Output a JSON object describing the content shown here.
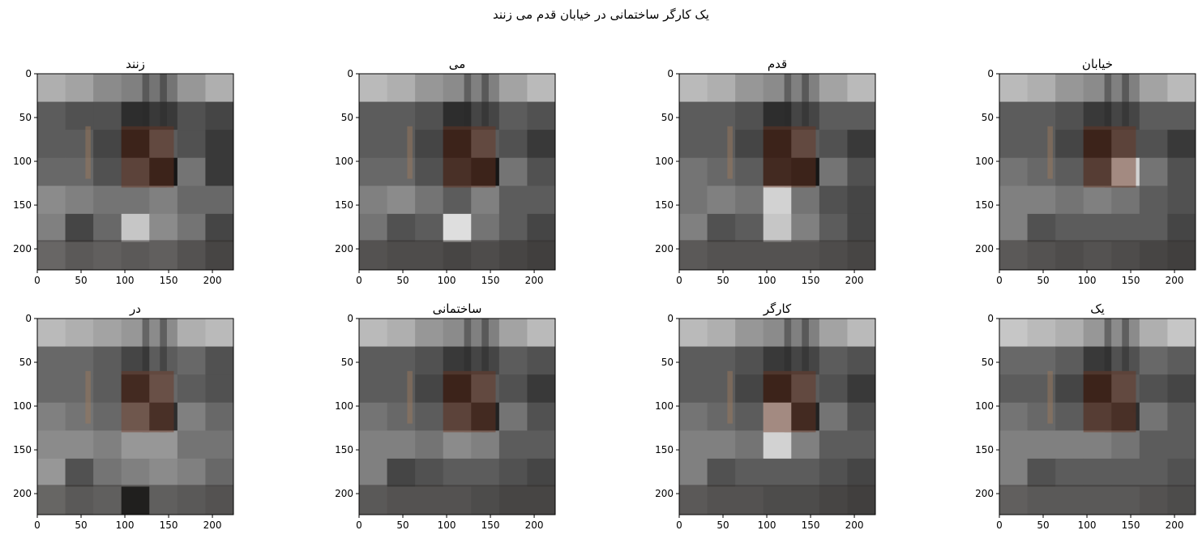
{
  "figure": {
    "suptitle": "یک کارگر ساختمانی در خیابان قدم می زنند",
    "ticks": [
      0,
      50,
      100,
      150,
      200
    ],
    "extent": 224,
    "grid": 7
  },
  "chart_data": [
    {
      "type": "heatmap",
      "title": "زنند",
      "xlim": [
        0,
        224
      ],
      "ylim": [
        224,
        0
      ],
      "grid_size": 7,
      "values": [
        [
          0.7,
          0.65,
          0.55,
          0.5,
          0.45,
          0.6,
          0.7
        ],
        [
          0.35,
          0.3,
          0.3,
          0.15,
          0.2,
          0.3,
          0.25
        ],
        [
          0.35,
          0.35,
          0.25,
          0.05,
          0.35,
          0.3,
          0.2
        ],
        [
          0.4,
          0.4,
          0.3,
          0.3,
          0.05,
          0.45,
          0.2
        ],
        [
          0.55,
          0.5,
          0.45,
          0.45,
          0.5,
          0.4,
          0.4
        ],
        [
          0.5,
          0.25,
          0.4,
          0.8,
          0.55,
          0.45,
          0.25
        ],
        [
          0.6,
          0.5,
          0.55,
          0.5,
          0.55,
          0.45,
          0.35
        ]
      ]
    },
    {
      "type": "heatmap",
      "title": "می",
      "xlim": [
        0,
        224
      ],
      "ylim": [
        224,
        0
      ],
      "grid_size": 7,
      "values": [
        [
          0.75,
          0.7,
          0.6,
          0.55,
          0.5,
          0.65,
          0.75
        ],
        [
          0.35,
          0.35,
          0.3,
          0.15,
          0.25,
          0.35,
          0.3
        ],
        [
          0.35,
          0.35,
          0.25,
          0.05,
          0.35,
          0.3,
          0.2
        ],
        [
          0.4,
          0.4,
          0.3,
          0.15,
          0.05,
          0.45,
          0.3
        ],
        [
          0.5,
          0.55,
          0.45,
          0.35,
          0.5,
          0.35,
          0.35
        ],
        [
          0.45,
          0.3,
          0.35,
          0.9,
          0.45,
          0.35,
          0.25
        ],
        [
          0.45,
          0.4,
          0.4,
          0.35,
          0.4,
          0.35,
          0.3
        ]
      ]
    },
    {
      "type": "heatmap",
      "title": "قدم",
      "xlim": [
        0,
        224
      ],
      "ylim": [
        224,
        0
      ],
      "grid_size": 7,
      "values": [
        [
          0.75,
          0.7,
          0.6,
          0.55,
          0.5,
          0.65,
          0.75
        ],
        [
          0.35,
          0.35,
          0.3,
          0.15,
          0.25,
          0.35,
          0.35
        ],
        [
          0.35,
          0.35,
          0.25,
          0.05,
          0.35,
          0.3,
          0.2
        ],
        [
          0.45,
          0.4,
          0.35,
          0.1,
          0.05,
          0.45,
          0.3
        ],
        [
          0.45,
          0.5,
          0.45,
          0.85,
          0.45,
          0.3,
          0.25
        ],
        [
          0.5,
          0.3,
          0.35,
          0.8,
          0.5,
          0.35,
          0.25
        ],
        [
          0.5,
          0.45,
          0.45,
          0.45,
          0.45,
          0.4,
          0.35
        ]
      ]
    },
    {
      "type": "heatmap",
      "title": "خیابان",
      "xlim": [
        0,
        224
      ],
      "ylim": [
        224,
        0
      ],
      "grid_size": 7,
      "values": [
        [
          0.75,
          0.7,
          0.6,
          0.55,
          0.5,
          0.65,
          0.75
        ],
        [
          0.35,
          0.35,
          0.3,
          0.2,
          0.25,
          0.35,
          0.35
        ],
        [
          0.35,
          0.35,
          0.25,
          0.05,
          0.3,
          0.3,
          0.2
        ],
        [
          0.45,
          0.4,
          0.35,
          0.25,
          0.85,
          0.45,
          0.3
        ],
        [
          0.5,
          0.5,
          0.45,
          0.5,
          0.45,
          0.35,
          0.3
        ],
        [
          0.5,
          0.3,
          0.35,
          0.35,
          0.35,
          0.35,
          0.25
        ],
        [
          0.5,
          0.45,
          0.4,
          0.45,
          0.4,
          0.35,
          0.3
        ]
      ]
    },
    {
      "type": "heatmap",
      "title": "در",
      "xlim": [
        0,
        224
      ],
      "ylim": [
        224,
        0
      ],
      "grid_size": 7,
      "values": [
        [
          0.75,
          0.7,
          0.65,
          0.6,
          0.55,
          0.7,
          0.75
        ],
        [
          0.4,
          0.4,
          0.35,
          0.25,
          0.35,
          0.4,
          0.3
        ],
        [
          0.4,
          0.4,
          0.35,
          0.1,
          0.4,
          0.35,
          0.3
        ],
        [
          0.5,
          0.45,
          0.4,
          0.45,
          0.15,
          0.5,
          0.4
        ],
        [
          0.55,
          0.55,
          0.5,
          0.6,
          0.6,
          0.45,
          0.45
        ],
        [
          0.6,
          0.3,
          0.45,
          0.5,
          0.55,
          0.5,
          0.4
        ],
        [
          0.6,
          0.5,
          0.55,
          0.05,
          0.55,
          0.5,
          0.45
        ]
      ]
    },
    {
      "type": "heatmap",
      "title": "ساختمانی",
      "xlim": [
        0,
        224
      ],
      "ylim": [
        224,
        0
      ],
      "grid_size": 7,
      "values": [
        [
          0.75,
          0.7,
          0.6,
          0.55,
          0.5,
          0.65,
          0.75
        ],
        [
          0.35,
          0.35,
          0.3,
          0.2,
          0.25,
          0.35,
          0.3
        ],
        [
          0.35,
          0.35,
          0.25,
          0.05,
          0.35,
          0.3,
          0.2
        ],
        [
          0.45,
          0.4,
          0.35,
          0.3,
          0.1,
          0.45,
          0.3
        ],
        [
          0.5,
          0.5,
          0.45,
          0.55,
          0.5,
          0.35,
          0.35
        ],
        [
          0.5,
          0.25,
          0.3,
          0.35,
          0.35,
          0.3,
          0.25
        ],
        [
          0.5,
          0.45,
          0.45,
          0.45,
          0.4,
          0.35,
          0.35
        ]
      ]
    },
    {
      "type": "heatmap",
      "title": "کارگر",
      "xlim": [
        0,
        224
      ],
      "ylim": [
        224,
        0
      ],
      "grid_size": 7,
      "values": [
        [
          0.75,
          0.7,
          0.6,
          0.55,
          0.5,
          0.65,
          0.75
        ],
        [
          0.35,
          0.35,
          0.3,
          0.2,
          0.25,
          0.35,
          0.3
        ],
        [
          0.35,
          0.35,
          0.25,
          0.05,
          0.35,
          0.3,
          0.2
        ],
        [
          0.45,
          0.4,
          0.35,
          0.85,
          0.1,
          0.45,
          0.3
        ],
        [
          0.5,
          0.5,
          0.45,
          0.85,
          0.5,
          0.35,
          0.35
        ],
        [
          0.5,
          0.3,
          0.35,
          0.35,
          0.35,
          0.3,
          0.25
        ],
        [
          0.5,
          0.45,
          0.45,
          0.4,
          0.4,
          0.35,
          0.3
        ]
      ]
    },
    {
      "type": "heatmap",
      "title": "یک",
      "xlim": [
        0,
        224
      ],
      "ylim": [
        224,
        0
      ],
      "grid_size": 7,
      "values": [
        [
          0.8,
          0.75,
          0.7,
          0.6,
          0.55,
          0.7,
          0.8
        ],
        [
          0.4,
          0.4,
          0.35,
          0.2,
          0.3,
          0.4,
          0.35
        ],
        [
          0.35,
          0.35,
          0.25,
          0.05,
          0.35,
          0.3,
          0.25
        ],
        [
          0.45,
          0.4,
          0.35,
          0.25,
          0.15,
          0.45,
          0.35
        ],
        [
          0.5,
          0.5,
          0.5,
          0.5,
          0.45,
          0.35,
          0.35
        ],
        [
          0.5,
          0.3,
          0.35,
          0.35,
          0.35,
          0.35,
          0.3
        ],
        [
          0.55,
          0.5,
          0.5,
          0.5,
          0.5,
          0.45,
          0.4
        ]
      ]
    }
  ]
}
